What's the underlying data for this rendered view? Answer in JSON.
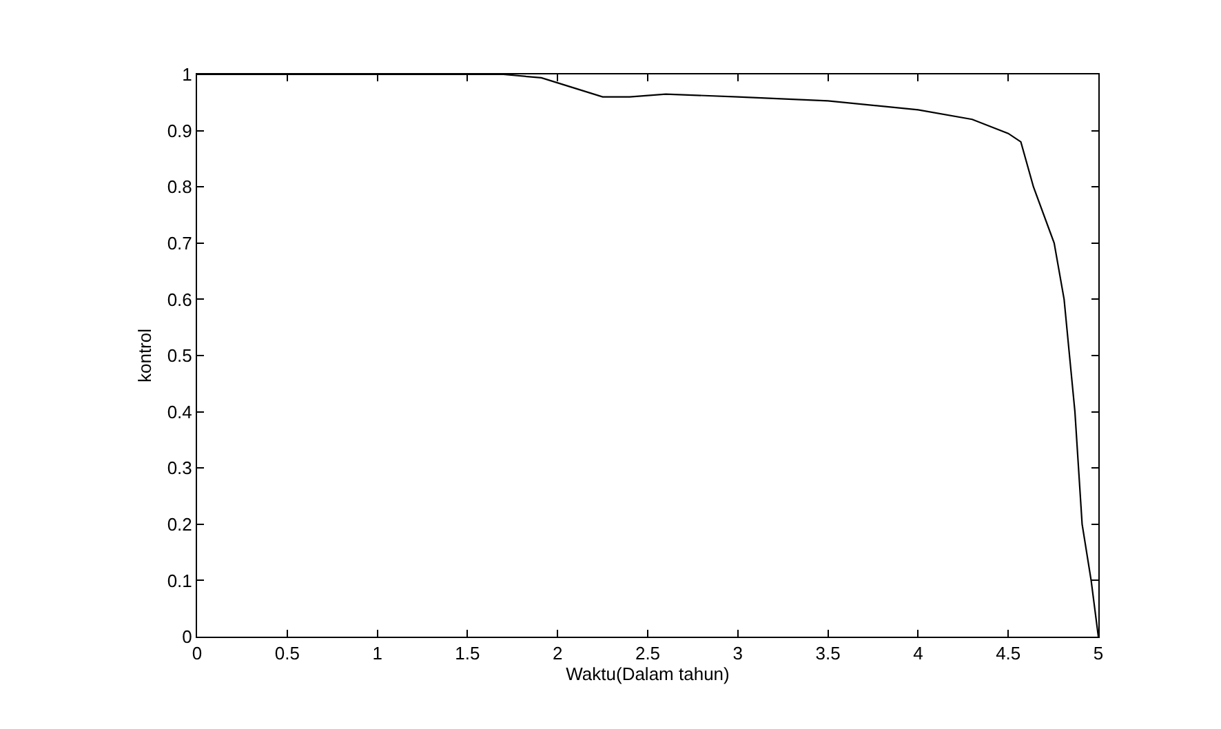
{
  "chart_data": {
    "type": "line",
    "xlabel": "Waktu(Dalam tahun)",
    "ylabel": "kontrol",
    "x": [
      0,
      1.7,
      1.91,
      2.1,
      2.25,
      2.4,
      2.6,
      3.0,
      3.5,
      4.0,
      4.3,
      4.5,
      4.57,
      4.64,
      4.755,
      4.81,
      4.84,
      4.87,
      4.89,
      4.91,
      4.96,
      5.0
    ],
    "series": [
      {
        "color": "#000000",
        "values": [
          1.0,
          1.0,
          0.994,
          0.975,
          0.96,
          0.96,
          0.965,
          0.96,
          0.953,
          0.937,
          0.92,
          0.895,
          0.88,
          0.8,
          0.7,
          0.6,
          0.5,
          0.4,
          0.3,
          0.2,
          0.1,
          0.0
        ]
      }
    ],
    "xlim": [
      0,
      5
    ],
    "xticks": [
      0,
      0.5,
      1,
      1.5,
      2,
      2.5,
      3,
      3.5,
      4,
      4.5,
      5
    ],
    "ylim": [
      0,
      1
    ],
    "yticks": [
      0,
      0.1,
      0.2,
      0.3,
      0.4,
      0.5,
      0.6,
      0.7,
      0.8,
      0.9,
      1
    ],
    "grid": false,
    "legend": false,
    "marker": "none",
    "line_style": "solid"
  }
}
